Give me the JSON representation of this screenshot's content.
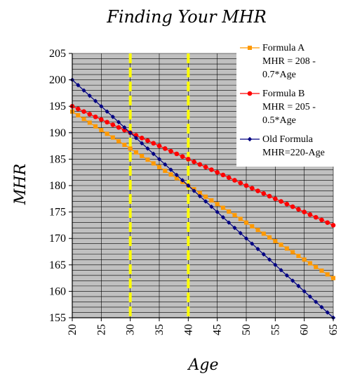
{
  "chart_data": {
    "type": "line",
    "title": "Finding Your MHR",
    "xlabel": "Age",
    "ylabel": "MHR",
    "xlim": [
      20,
      65
    ],
    "ylim": [
      155,
      205
    ],
    "x_ticks": [
      20,
      25,
      30,
      35,
      40,
      45,
      50,
      55,
      60,
      65
    ],
    "y_ticks": [
      155,
      160,
      165,
      170,
      175,
      180,
      185,
      190,
      195,
      200,
      205
    ],
    "grid": true,
    "plot_background": "#c0c0c0",
    "legend_position": "top-right",
    "reference_lines": [
      {
        "x": 30,
        "color": "#ffff00",
        "style": "dashed"
      },
      {
        "x": 40,
        "color": "#ffff00",
        "style": "dashed"
      }
    ],
    "series": [
      {
        "legend_lines": [
          "Formula  A",
          "MHR = 208 -",
          "0.7*Age"
        ],
        "color": "#ff9900",
        "marker": "square",
        "x_start": 20,
        "x_end": 65,
        "x_step": 1,
        "y_start": 194,
        "y_end": 162.5
      },
      {
        "legend_lines": [
          "Formula  B",
          "MHR = 205 -",
          "0.5*Age"
        ],
        "color": "#ff0000",
        "marker": "circle",
        "x_start": 20,
        "x_end": 65,
        "x_step": 1,
        "y_start": 195,
        "y_end": 172.5
      },
      {
        "legend_lines": [
          "Old Formula",
          "MHR=220-Age"
        ],
        "color": "#000080",
        "marker": "diamond",
        "x_start": 20,
        "x_end": 65,
        "x_step": 1,
        "y_start": 200,
        "y_end": 155
      }
    ]
  }
}
